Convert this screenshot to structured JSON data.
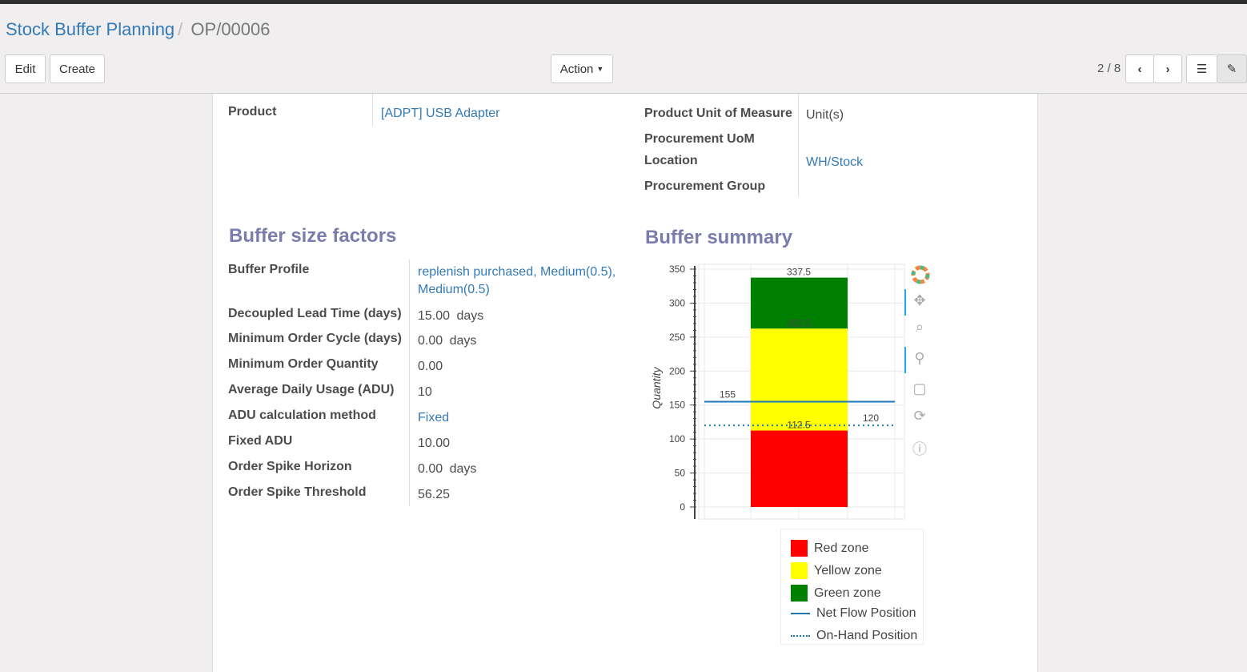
{
  "breadcrumb": {
    "parent": "Stock Buffer Planning",
    "separator": "/",
    "current": "OP/00006"
  },
  "toolbar": {
    "edit": "Edit",
    "create": "Create",
    "action": "Action",
    "pager": "2 / 8"
  },
  "fields": {
    "product_label": "Product",
    "product_value": "[ADPT] USB Adapter",
    "uom_label": "Product Unit of Measure",
    "uom_value": "Unit(s)",
    "proc_uom_label": "Procurement UoM",
    "location_label": "Location",
    "location_value": "WH/Stock",
    "proc_group_label": "Procurement Group"
  },
  "factors": {
    "title": "Buffer size factors",
    "rows": [
      {
        "label": "Buffer Profile",
        "value": "replenish purchased, Medium(0.5),",
        "value2": "Medium(0.5)",
        "unit": ""
      },
      {
        "label": "Decoupled Lead Time (days)",
        "value": "15.00",
        "unit": "days"
      },
      {
        "label": "Minimum Order Cycle (days)",
        "value": "0.00",
        "unit": "days"
      },
      {
        "label": "Minimum Order Quantity",
        "value": "0.00",
        "unit": ""
      },
      {
        "label": "Average Daily Usage (ADU)",
        "value": "10",
        "unit": ""
      },
      {
        "label": "ADU calculation method",
        "value": "Fixed",
        "unit": ""
      },
      {
        "label": "Fixed ADU",
        "value": "10.00",
        "unit": ""
      },
      {
        "label": "Order Spike Horizon",
        "value": "0.00",
        "unit": "days"
      },
      {
        "label": "Order Spike Threshold",
        "value": "56.25",
        "unit": ""
      }
    ]
  },
  "summary": {
    "title": "Buffer summary"
  },
  "chart_data": {
    "type": "bar",
    "stacked": true,
    "ylabel": "Quantity",
    "ylim": [
      0,
      350
    ],
    "yticks": [
      "0",
      "50",
      "100",
      "150",
      "200",
      "250",
      "300",
      "350"
    ],
    "grid": true,
    "series": [
      {
        "name": "Red zone",
        "from": 0,
        "to": 112.5,
        "color": "#ff0000"
      },
      {
        "name": "Yellow zone",
        "from": 112.5,
        "to": 262.5,
        "color": "#ffff00"
      },
      {
        "name": "Green zone",
        "from": 262.5,
        "to": 337.5,
        "color": "#008000"
      }
    ],
    "bar_labels": [
      "112.5",
      "262.5",
      "337.5"
    ],
    "lines": [
      {
        "name": "Net Flow Position",
        "value": 155,
        "label": "155",
        "style": "solid",
        "color": "#1f77b4"
      },
      {
        "name": "On-Hand Position",
        "value": 120,
        "label": "120",
        "style": "dotted",
        "color": "#1f77b4"
      }
    ],
    "legend": "bottom"
  }
}
